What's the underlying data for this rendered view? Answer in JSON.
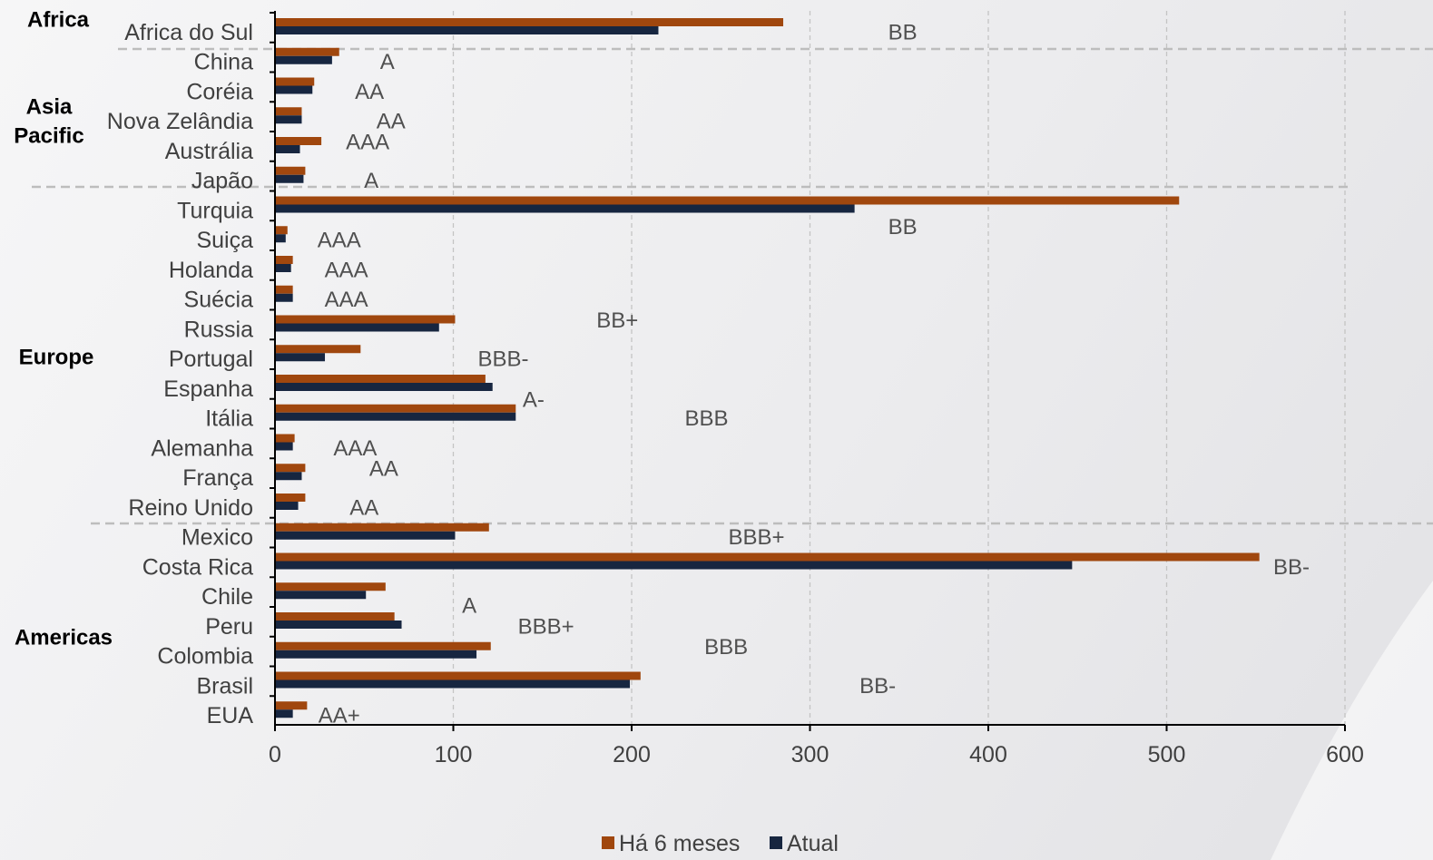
{
  "chart_data": {
    "type": "bar",
    "orientation": "horizontal",
    "categories": [
      "Africa do Sul",
      "China",
      "Coréia",
      "Nova Zelândia",
      "Austrália",
      "Japão",
      "Turquia",
      "Suiça",
      "Holanda",
      "Suécia",
      "Russia",
      "Portugal",
      "Espanha",
      "Itália",
      "Alemanha",
      "França",
      "Reino Unido",
      "Mexico",
      "Costa Rica",
      "Chile",
      "Peru",
      "Colombia",
      "Brasil",
      "EUA"
    ],
    "series": [
      {
        "name": "Há 6 meses",
        "color": "#a0470e",
        "values": [
          285,
          36,
          22,
          15,
          26,
          17,
          507,
          7,
          10,
          10,
          101,
          48,
          118,
          135,
          11,
          17,
          17,
          120,
          552,
          62,
          67,
          121,
          205,
          18
        ]
      },
      {
        "name": "Atual",
        "color": "#172640",
        "values": [
          215,
          32,
          21,
          15,
          14,
          16,
          325,
          6,
          9,
          10,
          92,
          28,
          122,
          135,
          10,
          15,
          13,
          101,
          447,
          51,
          71,
          113,
          199,
          10
        ]
      }
    ],
    "ratings": [
      "BB",
      "A",
      "AA",
      "AA",
      "AAA",
      "A",
      "BB",
      "AAA",
      "AAA",
      "AAA",
      "BB+",
      "BBB-",
      "A-",
      "BBB",
      "AAA",
      "AA",
      "AA",
      "BBB+",
      "BB-",
      "A",
      "BBB+",
      "BBB",
      "BB-",
      "AA+"
    ],
    "rating_x": [
      352,
      63,
      53,
      65,
      52,
      54,
      352,
      36,
      40,
      40,
      192,
      128,
      145,
      242,
      45,
      61,
      50,
      270,
      570,
      109,
      152,
      253,
      338,
      36
    ],
    "groups": [
      {
        "label": "Africa"
      },
      {
        "label": "Asia\nPacific"
      },
      {
        "label": "Europe"
      },
      {
        "label": "Americas"
      }
    ],
    "xlim": [
      0,
      600
    ],
    "xticks": [
      0,
      100,
      200,
      300,
      400,
      500,
      600
    ],
    "grid": "vertical dashed",
    "legend_position": "bottom"
  }
}
